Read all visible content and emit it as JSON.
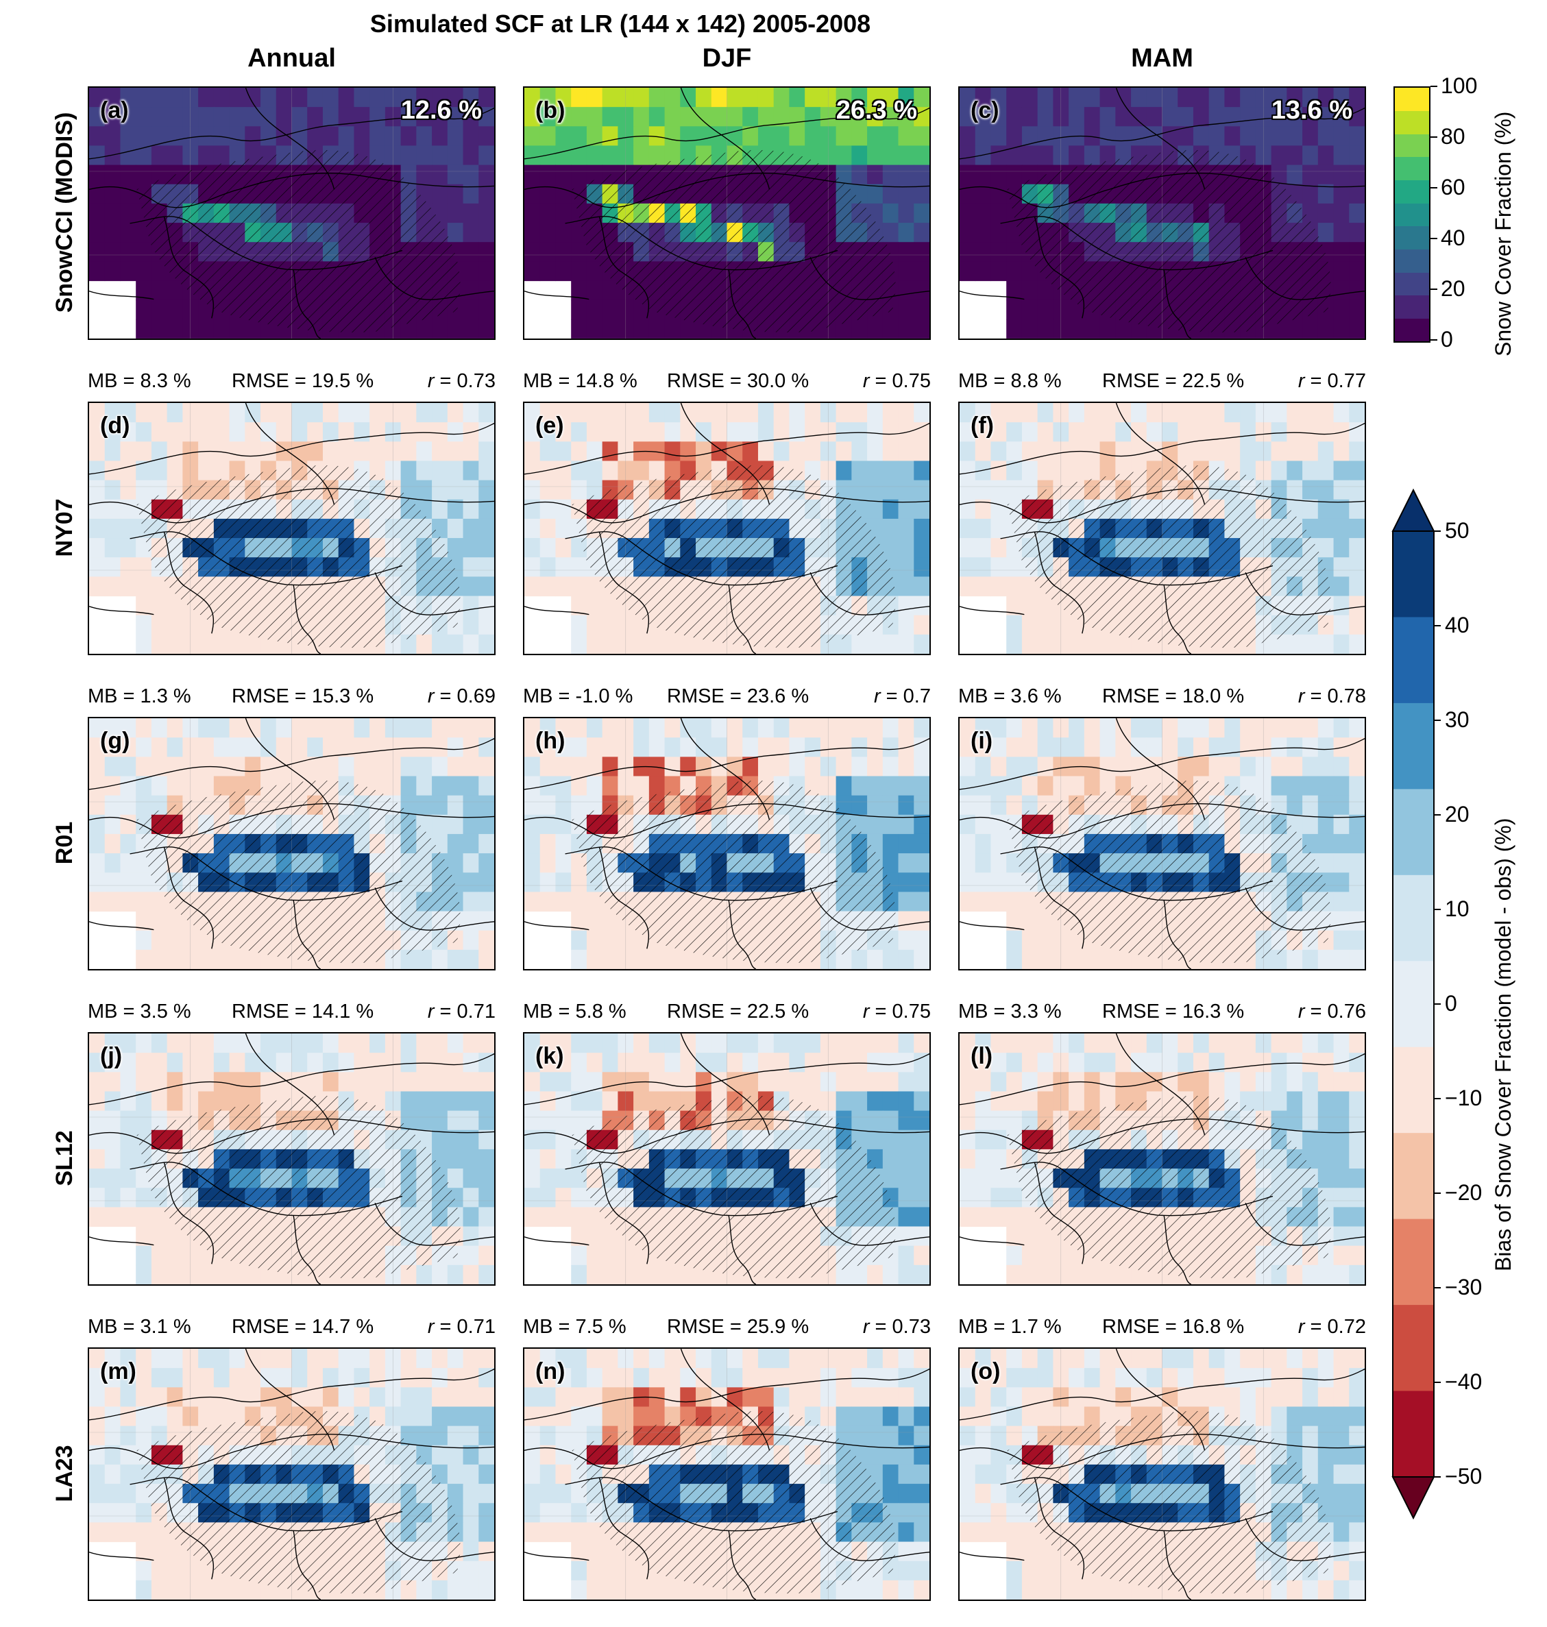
{
  "figure": {
    "title": "Simulated SCF at LR (144 x 142) 2005-2008",
    "columns": [
      "Annual",
      "DJF",
      "MAM"
    ],
    "rows": [
      "SnowCCI (MODIS)",
      "NY07",
      "R01",
      "SL12",
      "LA23"
    ]
  },
  "observation_panels": [
    {
      "label": "(a)",
      "mean": "12.6 %"
    },
    {
      "label": "(b)",
      "mean": "26.3 %"
    },
    {
      "label": "(c)",
      "mean": "13.6 %"
    }
  ],
  "bias_panels": [
    {
      "label": "(d)",
      "mb": "MB = 8.3 %",
      "rmse": "RMSE = 19.5 %",
      "r_sym": "r",
      "r_val": " = 0.73"
    },
    {
      "label": "(e)",
      "mb": "MB = 14.8 %",
      "rmse": "RMSE = 30.0 %",
      "r_sym": "r",
      "r_val": " = 0.75"
    },
    {
      "label": "(f)",
      "mb": "MB = 8.8 %",
      "rmse": "RMSE = 22.5 %",
      "r_sym": "r",
      "r_val": " = 0.77"
    },
    {
      "label": "(g)",
      "mb": "MB = 1.3 %",
      "rmse": "RMSE = 15.3 %",
      "r_sym": "r",
      "r_val": " = 0.69"
    },
    {
      "label": "(h)",
      "mb": "MB = -1.0 %",
      "rmse": "RMSE = 23.6 %",
      "r_sym": "r",
      "r_val": " = 0.7"
    },
    {
      "label": "(i)",
      "mb": "MB = 3.6 %",
      "rmse": "RMSE = 18.0 %",
      "r_sym": "r",
      "r_val": " = 0.78"
    },
    {
      "label": "(j)",
      "mb": "MB = 3.5 %",
      "rmse": "RMSE = 14.1 %",
      "r_sym": "r",
      "r_val": " = 0.71"
    },
    {
      "label": "(k)",
      "mb": "MB = 5.8 %",
      "rmse": "RMSE = 22.5 %",
      "r_sym": "r",
      "r_val": " = 0.75"
    },
    {
      "label": "(l)",
      "mb": "MB = 3.3 %",
      "rmse": "RMSE = 16.3 %",
      "r_sym": "r",
      "r_val": " = 0.76"
    },
    {
      "label": "(m)",
      "mb": "MB = 3.1 %",
      "rmse": "RMSE = 14.7 %",
      "r_sym": "r",
      "r_val": " = 0.71"
    },
    {
      "label": "(n)",
      "mb": "MB = 7.5 %",
      "rmse": "RMSE = 25.9 %",
      "r_sym": "r",
      "r_val": " = 0.73"
    },
    {
      "label": "(o)",
      "mb": "MB = 1.7 %",
      "rmse": "RMSE = 16.8 %",
      "r_sym": "r",
      "r_val": " = 0.72"
    }
  ],
  "snow_colorbar": {
    "label": "Snow Cover Fraction (%)",
    "ticks": [
      "0",
      "20",
      "40",
      "60",
      "80",
      "100"
    ],
    "colors": [
      "#440154",
      "#482475",
      "#414487",
      "#355f8d",
      "#2a788e",
      "#21918c",
      "#22a884",
      "#44bf70",
      "#7ad151",
      "#bddf26",
      "#fde725"
    ]
  },
  "bias_colorbar": {
    "label": "Bias of Snow Cover Fraction (model - obs) (%)",
    "ticks": [
      "50",
      "40",
      "30",
      "20",
      "10",
      "0",
      "−10",
      "−20",
      "−30",
      "−40",
      "−50"
    ],
    "colors_top_to_bottom": [
      "#0b3c78",
      "#2166ac",
      "#4393c3",
      "#92c5de",
      "#d1e5f0",
      "#e6eef5",
      "#fbe5dc",
      "#f4c3a8",
      "#e58267",
      "#cc4d40",
      "#a50f26"
    ],
    "extend_top": "#08306b",
    "extend_bottom": "#67001f"
  }
}
